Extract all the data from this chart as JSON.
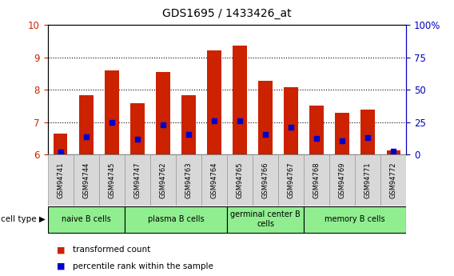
{
  "title": "GDS1695 / 1433426_at",
  "samples": [
    "GSM94741",
    "GSM94744",
    "GSM94745",
    "GSM94747",
    "GSM94762",
    "GSM94763",
    "GSM94764",
    "GSM94765",
    "GSM94766",
    "GSM94767",
    "GSM94768",
    "GSM94769",
    "GSM94771",
    "GSM94772"
  ],
  "transformed_count": [
    6.65,
    7.82,
    8.6,
    7.58,
    8.55,
    7.82,
    9.22,
    9.37,
    8.28,
    8.08,
    7.52,
    7.28,
    7.38,
    6.12
  ],
  "percentile_rank": [
    6.08,
    6.55,
    7.0,
    6.48,
    6.93,
    6.62,
    7.05,
    7.05,
    6.62,
    6.85,
    6.5,
    6.42,
    6.52,
    6.1
  ],
  "ylim_left": [
    6,
    10
  ],
  "ylim_right": [
    0,
    100
  ],
  "yticks_left": [
    6,
    7,
    8,
    9,
    10
  ],
  "yticks_right": [
    0,
    25,
    50,
    75,
    100
  ],
  "bar_color": "#CC2200",
  "marker_color": "#0000CC",
  "ylabel_left_color": "#CC2200",
  "ylabel_right_color": "#0000BB",
  "legend_red": "transformed count",
  "legend_blue": "percentile rank within the sample",
  "cell_type_label": "cell type",
  "bar_width": 0.55,
  "marker_size": 5,
  "groups": [
    {
      "label": "naive B cells",
      "indices": [
        0,
        1,
        2
      ]
    },
    {
      "label": "plasma B cells",
      "indices": [
        3,
        4,
        5,
        6
      ]
    },
    {
      "label": "germinal center B\ncells",
      "indices": [
        7,
        8,
        9
      ]
    },
    {
      "label": "memory B cells",
      "indices": [
        10,
        11,
        12,
        13
      ]
    }
  ],
  "group_color": "#90EE90",
  "sample_box_color": "#D8D8D8",
  "grid_yticks": [
    7,
    8,
    9
  ]
}
